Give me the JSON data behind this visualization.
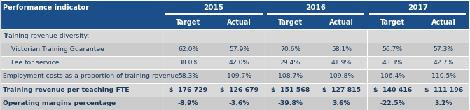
{
  "header_bg": "#1A4F8A",
  "row_bg_light": "#D9D9D9",
  "row_bg_mid": "#E8E8E8",
  "header_text_color": "#FFFFFF",
  "body_text_color": "#1A3A5C",
  "bold_label_color": "#1A3A5C",
  "years": [
    "2015",
    "2016",
    "2017"
  ],
  "col_headers": [
    "Target",
    "Actual",
    "Target",
    "Actual",
    "Target",
    "Actual"
  ],
  "row_labels": [
    "Training revenue diversity:",
    "  Victorian Training Guarantee",
    "  Fee for service",
    "Employment costs as a proportion of training revenue",
    "Training revenue per teaching FTE",
    "Operating margins percentage"
  ],
  "row_bold": [
    false,
    false,
    false,
    false,
    false,
    false
  ],
  "row_label_bold": [
    false,
    false,
    false,
    false,
    true,
    true
  ],
  "data": [
    [
      "",
      "",
      "",
      "",
      "",
      ""
    ],
    [
      "62.0%",
      "57.9%",
      "70.6%",
      "58.1%",
      "56.7%",
      "57.3%"
    ],
    [
      "38.0%",
      "42.0%",
      "29.4%",
      "41.9%",
      "43.3%",
      "42.7%"
    ],
    [
      "58.3%",
      "109.7%",
      "108.7%",
      "109.8%",
      "106.4%",
      "110.5%"
    ],
    [
      "$  176 729",
      "$  126 679",
      "$  151 568",
      "$  127 815",
      "$  140 416",
      "$  111 196"
    ],
    [
      "-8.9%",
      "-3.6%",
      "-39.8%",
      "3.6%",
      "-22.5%",
      "3.2%"
    ]
  ],
  "data_bold": [
    false,
    false,
    false,
    false,
    true,
    true
  ],
  "fig_width": 6.71,
  "fig_height": 1.57,
  "dpi": 100
}
